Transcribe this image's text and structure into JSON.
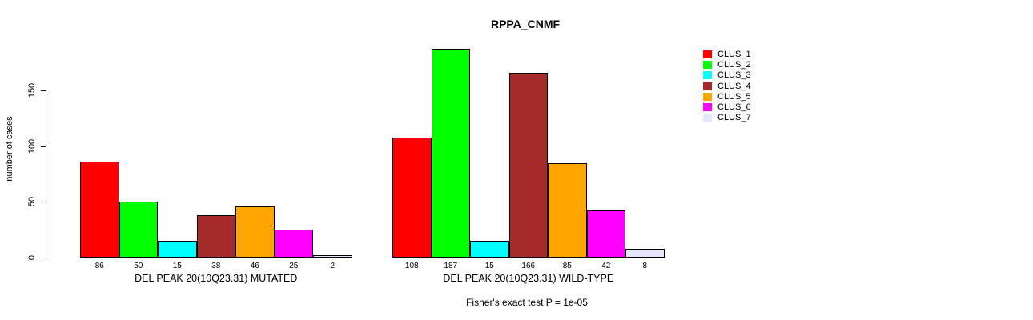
{
  "chart_data": {
    "type": "bar",
    "title": "RPPA_CNMF",
    "xlabel": "",
    "ylabel": "number of cases",
    "ylim": [
      0,
      150
    ],
    "yticks": [
      "0",
      "50",
      "100",
      "150"
    ],
    "grid": false,
    "legend_position": "right",
    "legend_entries": [
      "CLUS_1",
      "CLUS_2",
      "CLUS_3",
      "CLUS_4",
      "CLUS_5",
      "CLUS_6",
      "CLUS_7"
    ],
    "colors": [
      "#FF0000",
      "#00FF00",
      "#00FFFF",
      "#A52A2A",
      "#FFA500",
      "#FF00FF",
      "#E6E6FA"
    ],
    "groups": [
      {
        "label": "DEL PEAK 20(10Q23.31) MUTATED",
        "series": [
          "CLUS_1",
          "CLUS_2",
          "CLUS_3",
          "CLUS_4",
          "CLUS_5",
          "CLUS_6",
          "CLUS_7"
        ],
        "values": [
          86,
          50,
          15,
          38,
          46,
          25,
          2
        ]
      },
      {
        "label": "DEL PEAK 20(10Q23.31) WILD-TYPE",
        "series": [
          "CLUS_1",
          "CLUS_2",
          "CLUS_3",
          "CLUS_4",
          "CLUS_5",
          "CLUS_6",
          "CLUS_7"
        ],
        "values": [
          108,
          187,
          15,
          166,
          85,
          42,
          8
        ]
      }
    ],
    "annotation": "Fisher's exact test P = 1e-05"
  }
}
